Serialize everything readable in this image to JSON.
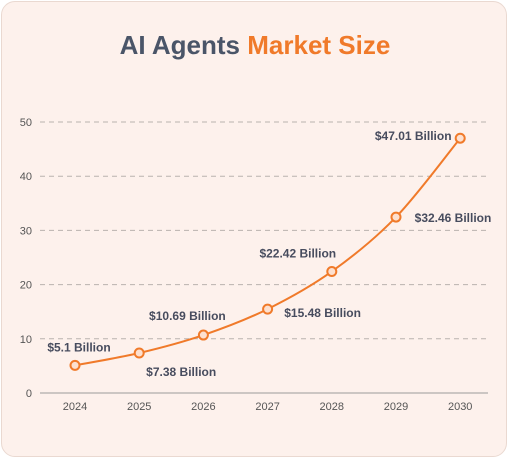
{
  "title": {
    "part1": "AI Agents",
    "part2": "Market Size"
  },
  "colors": {
    "accent": "#f07a2a",
    "title_gray": "#4a5568",
    "background": "#fdf1ec",
    "label": "#474c5e"
  },
  "chart_data": {
    "type": "line",
    "title": "AI Agents Market Size",
    "xlabel": "",
    "ylabel": "",
    "x": [
      "2024",
      "2025",
      "2026",
      "2027",
      "2028",
      "2029",
      "2030"
    ],
    "series": [
      {
        "values": [
          5.1,
          7.38,
          10.69,
          15.48,
          22.42,
          32.46,
          47.01
        ]
      }
    ],
    "data_labels": [
      "$5.1 Billion",
      "$7.38 Billion",
      "$10.69 Billion",
      "$15.48 Billion",
      "$22.42 Billion",
      "$32.46 Billion",
      "$47.01 Billion"
    ],
    "y_ticks": [
      0,
      10,
      20,
      30,
      40,
      50
    ],
    "ylim": [
      0,
      50
    ],
    "grid": true,
    "legend": "none"
  }
}
